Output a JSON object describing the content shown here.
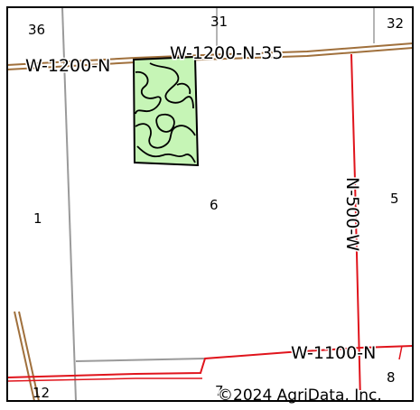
{
  "map": {
    "colors": {
      "road_brown": "#a0703c",
      "road_red": "#e0141c",
      "section_line": "#9a9a9a",
      "field_fill": "#c6f5b6",
      "field_outline": "#000000",
      "frame": "#000000"
    },
    "section_numbers": {
      "s36": "36",
      "s31": "31",
      "s32": "32",
      "s1": "1",
      "s6": "6",
      "s5": "5",
      "s12": "12",
      "s7": "7",
      "s8": "8"
    },
    "road_labels": {
      "w1200n_left": "W-1200-N",
      "w1200n35": "W-1200-N-35",
      "n500w": "N-500-W",
      "w1100n": "W-1100-N"
    },
    "copyright": "©2024 AgriData, Inc."
  }
}
